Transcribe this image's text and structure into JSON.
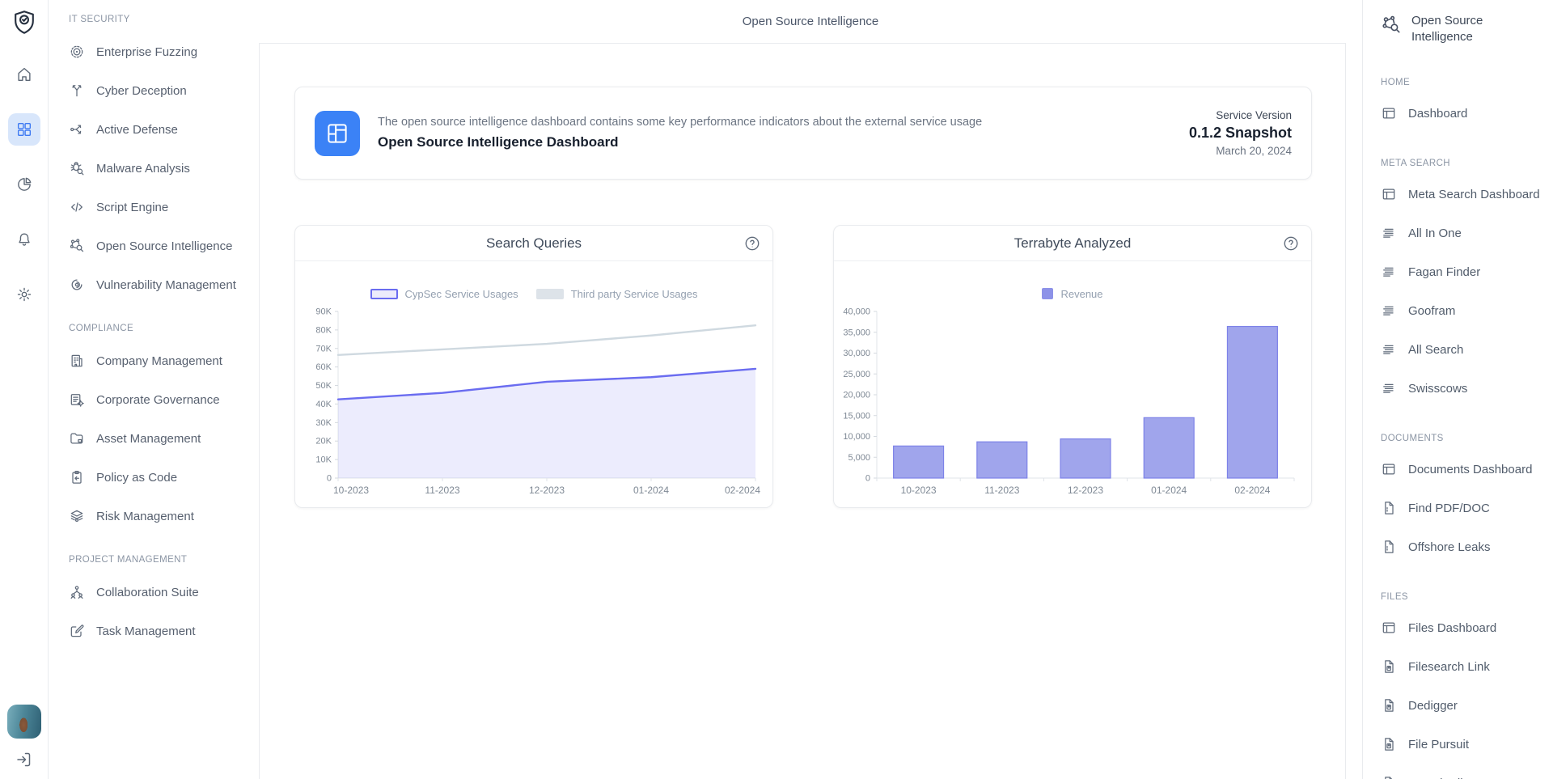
{
  "header": {
    "title": "Open Source Intelligence"
  },
  "rail": {
    "logo": {
      "icon": "shield-check-logo-icon",
      "name": "app-logo"
    },
    "items": [
      {
        "icon": "home-icon",
        "name": "rail-home",
        "active": false
      },
      {
        "icon": "apps-grid-icon",
        "name": "rail-dashboard",
        "active": true
      },
      {
        "icon": "pie-chart-icon",
        "name": "rail-analytics",
        "active": false
      },
      {
        "icon": "bell-icon",
        "name": "rail-notifications",
        "active": false
      },
      {
        "icon": "gear-icon",
        "name": "rail-settings",
        "active": false
      }
    ],
    "avatar": {
      "name": "user-avatar"
    },
    "signout": {
      "icon": "sign-out-icon",
      "name": "sign-out"
    }
  },
  "sidebar": {
    "sections": [
      {
        "label": "IT SECURITY",
        "items": [
          {
            "label": "Enterprise Fuzzing",
            "icon": "target-icon"
          },
          {
            "label": "Cyber Deception",
            "icon": "split-arrow-icon"
          },
          {
            "label": "Active Defense",
            "icon": "flow-arrows-icon"
          },
          {
            "label": "Malware Analysis",
            "icon": "bug-search-icon"
          },
          {
            "label": "Script Engine",
            "icon": "code-icon"
          },
          {
            "label": "Open Source Intelligence",
            "icon": "network-search-icon"
          },
          {
            "label": "Vulnerability Management",
            "icon": "fingerprint-icon"
          }
        ]
      },
      {
        "label": "COMPLIANCE",
        "items": [
          {
            "label": "Company Management",
            "icon": "building-icon"
          },
          {
            "label": "Corporate Governance",
            "icon": "list-gear-icon"
          },
          {
            "label": "Asset Management",
            "icon": "folder-icon"
          },
          {
            "label": "Policy as Code",
            "icon": "clipboard-arrow-icon"
          },
          {
            "label": "Risk Management",
            "icon": "layers-eye-icon"
          }
        ]
      },
      {
        "label": "PROJECT MANAGEMENT",
        "items": [
          {
            "label": "Collaboration Suite",
            "icon": "org-people-icon"
          },
          {
            "label": "Task Management",
            "icon": "edit-square-icon"
          }
        ]
      }
    ]
  },
  "info_card": {
    "icon": "layout-dashboard-icon",
    "icon_bg": "#3b82f6",
    "description": "The open source intelligence dashboard contains some key performance indicators about the external service usage",
    "title": "Open Source Intelligence Dashboard",
    "version_label": "Service Version",
    "version_value": "0.1.2 Snapshot",
    "version_date": "March 20, 2024"
  },
  "chart_data": [
    {
      "type": "area",
      "title": "Search Queries",
      "categories": [
        "10-2023",
        "11-2023",
        "12-2023",
        "01-2024",
        "02-2024"
      ],
      "series": [
        {
          "name": "CypSec Service Usages",
          "values": [
            42500,
            46000,
            52000,
            54500,
            59000
          ],
          "line_color": "#6a6cf0",
          "area_fill": "rgba(106,108,240,0.13)",
          "swatch_fill": "#ecebfb",
          "swatch_border": "#6a6cf0"
        },
        {
          "name": "Third party Service Usages",
          "values": [
            66500,
            69500,
            72500,
            77000,
            82500
          ],
          "line_color": "#cfd9e0",
          "area_fill": "none",
          "swatch_fill": "#dde3e9",
          "swatch_border": "#dde3e9"
        }
      ],
      "ylim": [
        0,
        90000
      ],
      "ytick_step": 10000,
      "ytick_format": "K",
      "xlabel": "",
      "ylabel": "",
      "grid": false,
      "legend_position": "top"
    },
    {
      "type": "bar",
      "title": "Terrabyte Analyzed",
      "categories": [
        "10-2023",
        "11-2023",
        "12-2023",
        "01-2024",
        "02-2024"
      ],
      "series": [
        {
          "name": "Revenue",
          "values": [
            7700,
            8700,
            9400,
            14500,
            36400
          ],
          "bar_fill": "#a0a5ec",
          "bar_border": "#7d82e8",
          "swatch_fill": "#8d92e8",
          "swatch_border": "#8d92e8"
        }
      ],
      "ylim": [
        0,
        40000
      ],
      "ytick_step": 5000,
      "ytick_format": "comma",
      "xlabel": "",
      "ylabel": "",
      "grid": false,
      "legend_position": "top"
    }
  ],
  "rightbar": {
    "title": "Open Source Intelligence",
    "icon": "network-search-icon",
    "sections": [
      {
        "label": "HOME",
        "items": [
          {
            "label": "Dashboard",
            "icon": "window-icon"
          }
        ]
      },
      {
        "label": "META SEARCH",
        "items": [
          {
            "label": "Meta Search Dashboard",
            "icon": "window-icon"
          },
          {
            "label": "All In One",
            "icon": "list-lines-icon"
          },
          {
            "label": "Fagan Finder",
            "icon": "list-lines-icon"
          },
          {
            "label": "Goofram",
            "icon": "list-lines-icon"
          },
          {
            "label": "All Search",
            "icon": "list-lines-icon"
          },
          {
            "label": "Swisscows",
            "icon": "list-lines-icon"
          }
        ]
      },
      {
        "label": "DOCUMENTS",
        "items": [
          {
            "label": "Documents Dashboard",
            "icon": "window-icon"
          },
          {
            "label": "Find PDF/DOC",
            "icon": "doc-dashed-icon"
          },
          {
            "label": "Offshore Leaks",
            "icon": "doc-dashed-icon"
          }
        ]
      },
      {
        "label": "FILES",
        "items": [
          {
            "label": "Files Dashboard",
            "icon": "window-icon"
          },
          {
            "label": "Filesearch Link",
            "icon": "file-disc-icon"
          },
          {
            "label": "Dedigger",
            "icon": "file-disc-icon"
          },
          {
            "label": "File Pursuit",
            "icon": "file-disc-icon"
          },
          {
            "label": "Search Files",
            "icon": "file-disc-icon"
          }
        ]
      }
    ]
  }
}
